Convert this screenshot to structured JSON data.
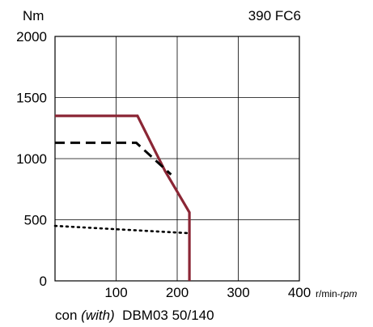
{
  "chart_data": {
    "type": "line",
    "title": "390 FC6",
    "ylabel": "Nm",
    "xlabel_unit_upright": "r/min-",
    "xlabel_unit_italic": "rpm",
    "caption_prefix": "con",
    "caption_italic": "(with)",
    "caption_suffix": "DBM03 50/140",
    "xlim": [
      0,
      400
    ],
    "ylim": [
      0,
      2000
    ],
    "x_ticks": [
      "100",
      "200",
      "300",
      "400"
    ],
    "y_ticks": [
      "0",
      "500",
      "1000",
      "1500",
      "2000"
    ],
    "x_tick_values": [
      100,
      200,
      300,
      400
    ],
    "y_tick_values": [
      0,
      500,
      1000,
      1500,
      2000
    ],
    "grid": true,
    "series": [
      {
        "style": "solid",
        "color": "#8b2635",
        "x": [
          0,
          135,
          180,
          220,
          220
        ],
        "y": [
          1350,
          1350,
          900,
          560,
          0
        ]
      },
      {
        "style": "dashed",
        "color": "#000000",
        "x": [
          0,
          133,
          190
        ],
        "y": [
          1130,
          1130,
          870
        ]
      },
      {
        "style": "dotted",
        "color": "#000000",
        "x": [
          0,
          220
        ],
        "y": [
          450,
          390
        ]
      }
    ]
  }
}
